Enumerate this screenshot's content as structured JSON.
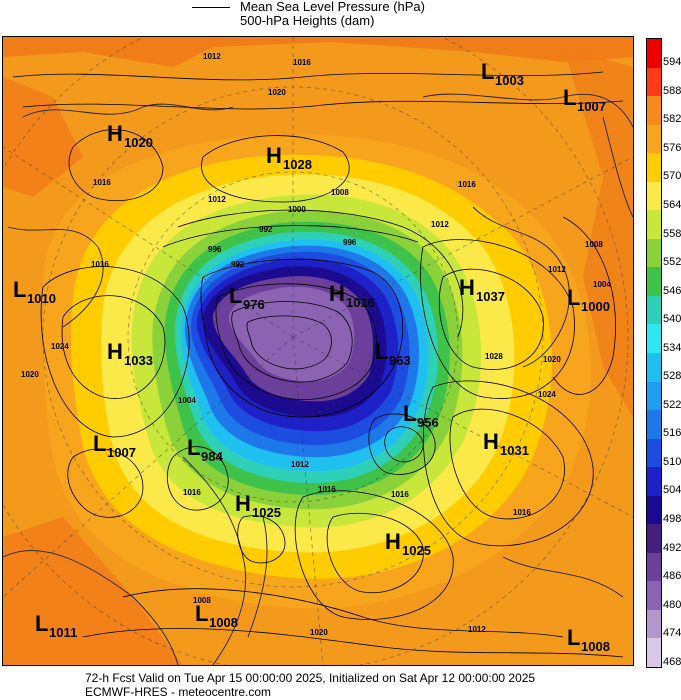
{
  "legend": {
    "mslp_label": "Mean Sea Level Pressure (hPa)",
    "height_label": "500-hPa Heights (dam)"
  },
  "colorbar": {
    "levels": [
      "594",
      "588",
      "582",
      "576",
      "570",
      "564",
      "558",
      "552",
      "546",
      "540",
      "534",
      "528",
      "522",
      "516",
      "510",
      "504",
      "498",
      "492",
      "486",
      "480",
      "474",
      "468"
    ],
    "colors": [
      "#ee0000",
      "#ff3a1a",
      "#f78a1a",
      "#f7a51c",
      "#ffcc00",
      "#fbe94a",
      "#c9e63a",
      "#8bd13a",
      "#3fc24a",
      "#2fd0b8",
      "#2ee6f0",
      "#1fc0f0",
      "#1e9ef0",
      "#1f78ea",
      "#1c4de0",
      "#1e20c8",
      "#1c0a90",
      "#43207e",
      "#6b3f9a",
      "#8c63b3",
      "#b397cc",
      "#d8c8e6"
    ]
  },
  "map": {
    "systems": [
      {
        "type": "L",
        "value": "1003"
      },
      {
        "type": "L",
        "value": "1007"
      },
      {
        "type": "H",
        "value": "1020"
      },
      {
        "type": "H",
        "value": "1028"
      },
      {
        "type": "L",
        "value": "1010"
      },
      {
        "type": "H",
        "value": "1033"
      },
      {
        "type": "L",
        "value": "1007"
      },
      {
        "type": "L",
        "value": "984"
      },
      {
        "type": "H",
        "value": "1025"
      },
      {
        "type": "H",
        "value": "1025"
      },
      {
        "type": "H",
        "value": "1037"
      },
      {
        "type": "L",
        "value": "1000"
      },
      {
        "type": "H",
        "value": "1031"
      },
      {
        "type": "L",
        "value": "976"
      },
      {
        "type": "H",
        "value": "1016"
      },
      {
        "type": "L",
        "value": "963"
      },
      {
        "type": "L",
        "value": "956"
      },
      {
        "type": "L",
        "value": "1011"
      },
      {
        "type": "L",
        "value": "1008"
      },
      {
        "type": "L",
        "value": "1008"
      }
    ],
    "isobar_labels": [
      "1012",
      "1016",
      "1020",
      "1016",
      "1012",
      "1000",
      "992",
      "1008",
      "1012",
      "1016",
      "1028",
      "1020",
      "1024",
      "1016",
      "1016",
      "1016",
      "1020",
      "1012",
      "1008",
      "1008",
      "1004",
      "1012",
      "1020",
      "1024",
      "1016",
      "1004",
      "1012",
      "1016",
      "996",
      "996",
      "992"
    ]
  },
  "footer": {
    "line1": "72-h Fcst Valid on Tue Apr 15 00:00:00 2025, Initialized on Sat Apr 12 00:00:00 2025",
    "line2": "ECMWF-HRES  - meteocentre.com"
  }
}
